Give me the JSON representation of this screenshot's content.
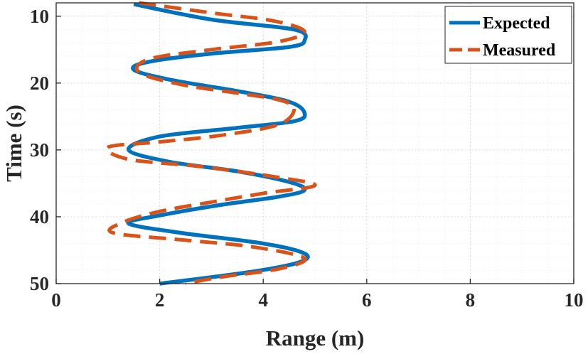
{
  "chart_data": {
    "type": "line",
    "title": "",
    "xlabel": "Range (m)",
    "ylabel": "Time (s)",
    "xlim": [
      0,
      10
    ],
    "ylim": [
      8,
      50
    ],
    "y_reversed": true,
    "xticks": [
      0,
      2,
      4,
      6,
      8,
      10
    ],
    "yticks": [
      10,
      20,
      30,
      40,
      50
    ],
    "grid": true,
    "legend_position": "top-right",
    "series": [
      {
        "name": "Expected",
        "color": "#0072BD",
        "style": "solid",
        "points": [
          [
            1.5,
            8.2
          ],
          [
            3.0,
            10.5
          ],
          [
            4.6,
            12.0
          ],
          [
            4.8,
            13.6
          ],
          [
            4.5,
            14.6
          ],
          [
            3.0,
            15.6
          ],
          [
            1.8,
            16.8
          ],
          [
            1.5,
            18.0
          ],
          [
            2.2,
            19.5
          ],
          [
            3.5,
            21.2
          ],
          [
            4.5,
            22.8
          ],
          [
            4.8,
            24.5
          ],
          [
            4.6,
            25.7
          ],
          [
            3.5,
            26.7
          ],
          [
            2.0,
            28.0
          ],
          [
            1.4,
            30.0
          ],
          [
            2.2,
            31.8
          ],
          [
            3.5,
            33.2
          ],
          [
            4.5,
            34.8
          ],
          [
            4.8,
            36.0
          ],
          [
            4.3,
            37.0
          ],
          [
            3.2,
            38.2
          ],
          [
            2.0,
            39.8
          ],
          [
            1.4,
            41.0
          ],
          [
            2.4,
            42.4
          ],
          [
            4.0,
            44.0
          ],
          [
            4.8,
            45.5
          ],
          [
            4.7,
            46.8
          ],
          [
            3.8,
            48.2
          ],
          [
            2.0,
            50.0
          ]
        ]
      },
      {
        "name": "Measured",
        "color": "#D95319",
        "style": "dashed",
        "points": [
          [
            1.6,
            8.0
          ],
          [
            3.0,
            9.5
          ],
          [
            4.2,
            10.7
          ],
          [
            4.8,
            12.3
          ],
          [
            4.3,
            13.8
          ],
          [
            3.0,
            15.0
          ],
          [
            1.8,
            16.4
          ],
          [
            1.6,
            18.4
          ],
          [
            2.4,
            20.2
          ],
          [
            3.5,
            21.5
          ],
          [
            4.3,
            22.5
          ],
          [
            4.6,
            23.8
          ],
          [
            4.3,
            26.2
          ],
          [
            3.2,
            27.8
          ],
          [
            2.0,
            28.8
          ],
          [
            1.0,
            29.6
          ],
          [
            1.4,
            31.4
          ],
          [
            2.8,
            32.5
          ],
          [
            4.2,
            34.0
          ],
          [
            5.0,
            35.3
          ],
          [
            4.0,
            36.5
          ],
          [
            3.0,
            37.8
          ],
          [
            2.0,
            39.2
          ],
          [
            1.3,
            40.8
          ],
          [
            1.1,
            42.4
          ],
          [
            2.5,
            43.5
          ],
          [
            3.8,
            44.5
          ],
          [
            4.8,
            46.2
          ],
          [
            4.3,
            47.8
          ],
          [
            3.2,
            49.0
          ],
          [
            2.5,
            50.0
          ]
        ]
      }
    ]
  }
}
